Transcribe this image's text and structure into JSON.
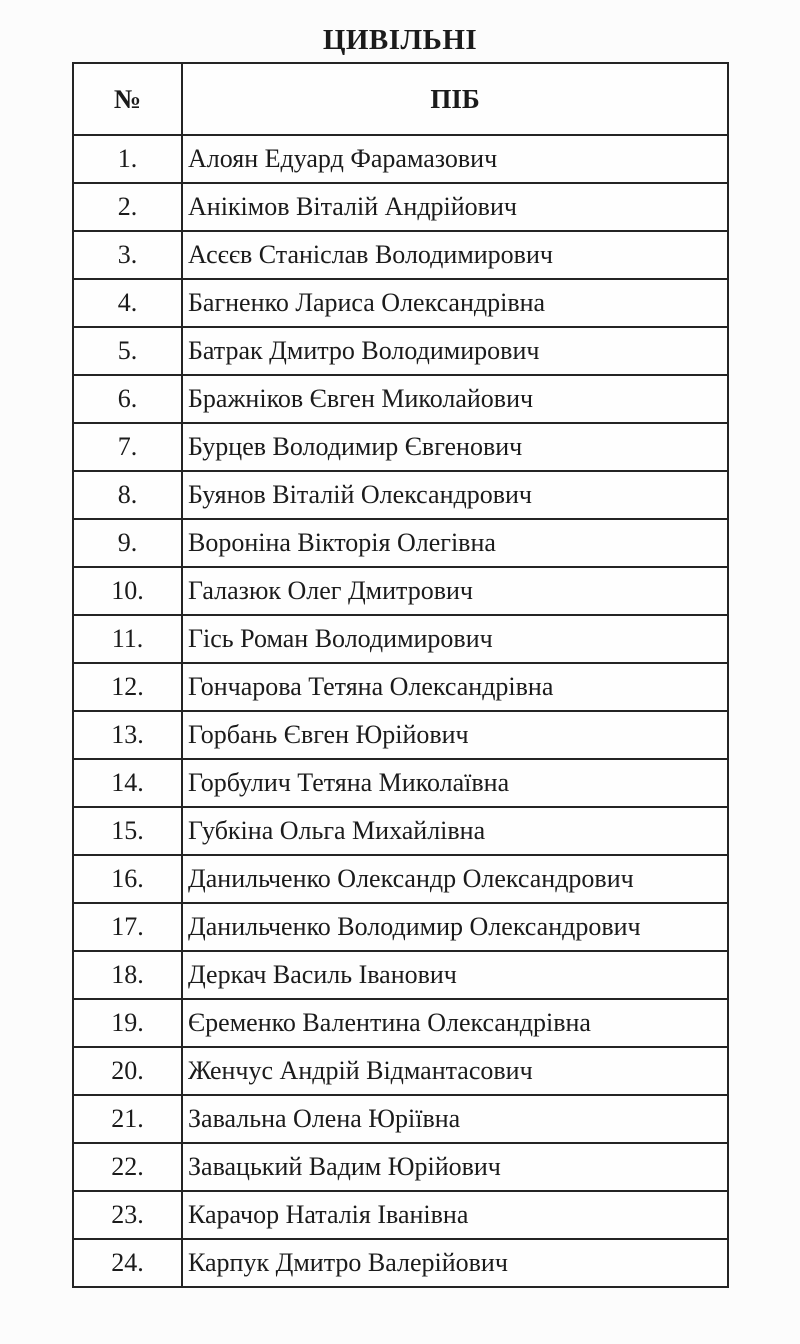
{
  "document": {
    "title": "ЦИВІЛЬНІ",
    "table": {
      "headers": {
        "number": "№",
        "name": "ПІБ"
      },
      "rows": [
        {
          "number": "1.",
          "name": "Алоян Едуард Фарамазович"
        },
        {
          "number": "2.",
          "name": "Анікімов Віталій Андрійович"
        },
        {
          "number": "3.",
          "name": "Асєєв Станіслав Володимирович"
        },
        {
          "number": "4.",
          "name": "Багненко Лариса Олександрівна"
        },
        {
          "number": "5.",
          "name": "Батрак Дмитро Володимирович"
        },
        {
          "number": "6.",
          "name": "Бражніков Євген Миколайович"
        },
        {
          "number": "7.",
          "name": "Бурцев Володимир Євгенович"
        },
        {
          "number": "8.",
          "name": "Буянов Віталій Олександрович"
        },
        {
          "number": "9.",
          "name": "Вороніна Вікторія Олегівна"
        },
        {
          "number": "10.",
          "name": "Галазюк Олег Дмитрович"
        },
        {
          "number": "11.",
          "name": "Гісь Роман Володимирович"
        },
        {
          "number": "12.",
          "name": "Гончарова Тетяна Олександрівна"
        },
        {
          "number": "13.",
          "name": "Горбань Євген Юрійович"
        },
        {
          "number": "14.",
          "name": "Горбулич Тетяна Миколаївна"
        },
        {
          "number": "15.",
          "name": "Губкіна Ольга Михайлівна"
        },
        {
          "number": "16.",
          "name": "Данильченко Олександр Олександрович"
        },
        {
          "number": "17.",
          "name": "Данильченко Володимир Олександрович"
        },
        {
          "number": "18.",
          "name": "Деркач Василь Іванович"
        },
        {
          "number": "19.",
          "name": "Єременко Валентина Олександрівна"
        },
        {
          "number": "20.",
          "name": "Женчус Андрій Відмантасович"
        },
        {
          "number": "21.",
          "name": "Завальна Олена Юріївна"
        },
        {
          "number": "22.",
          "name": "Завацький Вадим Юрійович"
        },
        {
          "number": "23.",
          "name": "Карачор Наталія Іванівна"
        },
        {
          "number": "24.",
          "name": "Карпук Дмитро Валерійович"
        }
      ]
    }
  }
}
